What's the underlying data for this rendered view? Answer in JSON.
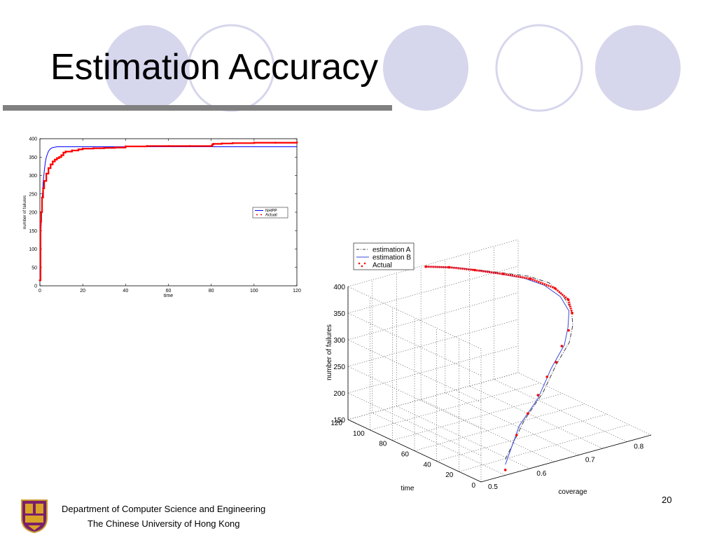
{
  "slide": {
    "title": "Estimation Accuracy",
    "number": "20",
    "footer_line1": "Department of Computer Science and Engineering",
    "footer_line2": "The Chinese University of Hong Kong",
    "colors": {
      "circle_fill": "#d6d6ec",
      "circle_stroke": "#d6d6ec",
      "rule": "#808080"
    }
  },
  "chart_data": [
    {
      "type": "line",
      "xlabel": "time",
      "ylabel": "number of failures",
      "xlim": [
        0,
        120
      ],
      "ylim": [
        0,
        400
      ],
      "xticks": [
        0,
        20,
        40,
        60,
        80,
        100,
        120
      ],
      "yticks": [
        0,
        50,
        100,
        150,
        200,
        250,
        300,
        350,
        400
      ],
      "legend": "right-middle",
      "series": [
        {
          "name": "NHPP",
          "style": "solid",
          "color": "#0000ff",
          "x": [
            0,
            0.5,
            1,
            1.5,
            2,
            2.5,
            3,
            4,
            5,
            6,
            7,
            8,
            10,
            15,
            20,
            40,
            60,
            80,
            100,
            120
          ],
          "y": [
            30,
            150,
            230,
            280,
            310,
            335,
            350,
            366,
            373,
            376,
            377,
            378,
            378,
            378,
            378,
            378,
            378,
            378,
            378,
            378
          ]
        },
        {
          "name": "Actual",
          "style": "dots",
          "color": "#ff0000",
          "x": [
            0,
            0.3,
            0.6,
            1,
            1.5,
            2,
            3,
            4,
            5,
            6,
            7,
            8,
            9,
            10,
            11,
            12,
            15,
            18,
            20,
            25,
            30,
            35,
            40,
            50,
            60,
            70,
            80,
            80.5,
            81,
            85,
            90,
            100,
            110,
            120
          ],
          "y": [
            15,
            175,
            200,
            240,
            265,
            285,
            305,
            320,
            330,
            338,
            343,
            347,
            350,
            355,
            362,
            365,
            368,
            371,
            373,
            374,
            375,
            376,
            379,
            380,
            380,
            380,
            380,
            384,
            386,
            387,
            388,
            389,
            389,
            390
          ]
        }
      ]
    },
    {
      "type": "line",
      "subtype": "3d",
      "xlabel": "coverage",
      "ylabel": "time",
      "zlabel": "number of failures",
      "xlim": [
        0.5,
        0.85
      ],
      "ylim": [
        0,
        120
      ],
      "zlim": [
        150,
        400
      ],
      "xticks": [
        0.5,
        0.6,
        0.7,
        0.8
      ],
      "yticks": [
        0,
        20,
        40,
        60,
        80,
        100,
        120
      ],
      "zticks": [
        150,
        200,
        250,
        300,
        350,
        400
      ],
      "legend": "top-left",
      "series": [
        {
          "name": "estimation A",
          "style": "dashdot",
          "color": "#404040",
          "coverage": [
            0.55,
            0.6,
            0.65,
            0.7,
            0.75,
            0.78,
            0.8,
            0.805,
            0.8,
            0.78,
            0.74,
            0.7,
            0.66
          ],
          "time": [
            0,
            5,
            10,
            20,
            30,
            40,
            50,
            60,
            70,
            80,
            95,
            110,
            120
          ],
          "failures": [
            180,
            235,
            270,
            300,
            320,
            335,
            350,
            365,
            380,
            388,
            392,
            395,
            397
          ]
        },
        {
          "name": "estimation B",
          "style": "solid",
          "color": "#3b4bd8",
          "coverage": [
            0.55,
            0.59,
            0.64,
            0.69,
            0.74,
            0.77,
            0.795,
            0.8,
            0.79,
            0.77,
            0.735,
            0.7,
            0.66
          ],
          "time": [
            0,
            5,
            10,
            20,
            30,
            40,
            50,
            60,
            70,
            80,
            95,
            110,
            120
          ],
          "failures": [
            170,
            228,
            262,
            296,
            318,
            333,
            348,
            364,
            378,
            387,
            392,
            395,
            397
          ]
        },
        {
          "name": "Actual",
          "style": "dots",
          "color": "#ff0000",
          "coverage": [
            0.55,
            0.58,
            0.61,
            0.64,
            0.67,
            0.7,
            0.73,
            0.76,
            0.79,
            0.805,
            0.8,
            0.78,
            0.75,
            0.72,
            0.69,
            0.66
          ],
          "time": [
            0,
            3,
            6,
            10,
            15,
            20,
            28,
            35,
            45,
            55,
            65,
            78,
            90,
            102,
            112,
            120
          ],
          "failures": [
            160,
            215,
            245,
            268,
            290,
            305,
            320,
            335,
            350,
            362,
            375,
            385,
            390,
            393,
            396,
            397
          ]
        }
      ]
    }
  ]
}
